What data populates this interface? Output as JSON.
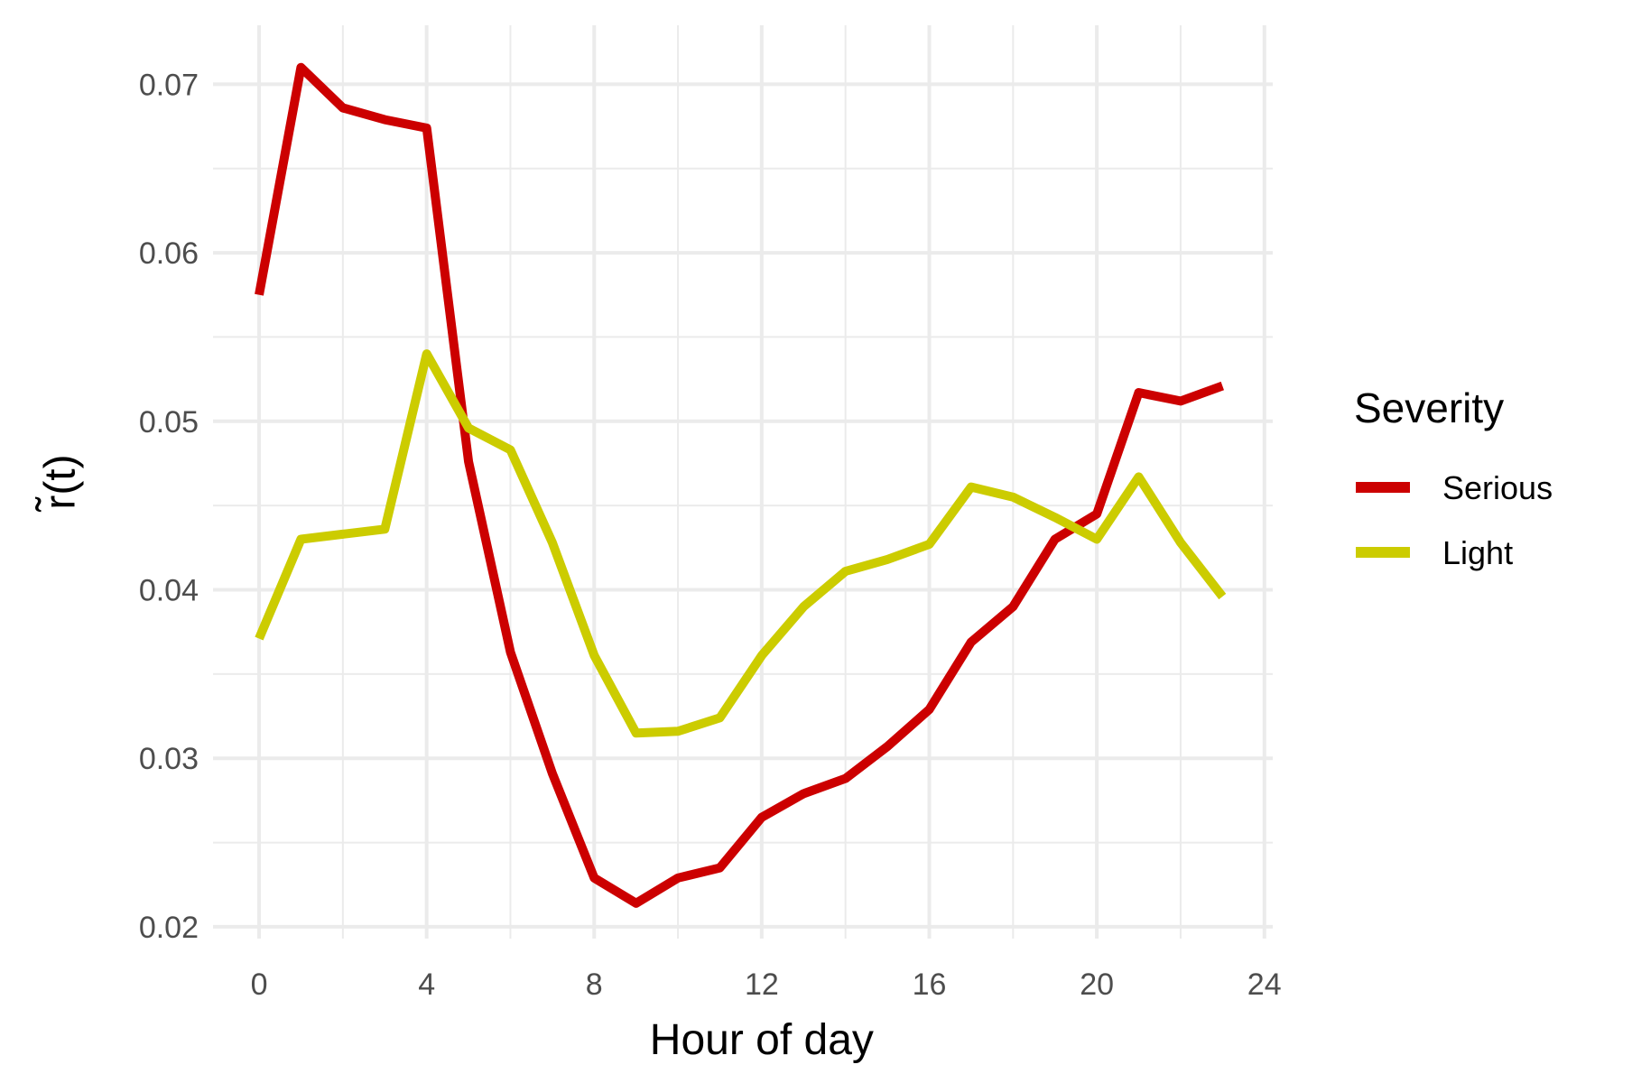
{
  "chart_data": {
    "type": "line",
    "xlabel": "Hour of day",
    "ylabel": "r̃(t)",
    "xlim": [
      -1.1,
      24.2
    ],
    "ylim": [
      0.0193,
      0.0735
    ],
    "x_ticks": [
      0,
      4,
      8,
      12,
      16,
      20,
      24
    ],
    "x_tick_labels": [
      "0",
      "4",
      "8",
      "12",
      "16",
      "20",
      "24"
    ],
    "y_ticks": [
      0.02,
      0.03,
      0.04,
      0.05,
      0.06,
      0.07
    ],
    "y_tick_labels": [
      "0.02",
      "0.03",
      "0.04",
      "0.05",
      "0.06",
      "0.07"
    ],
    "x_minor_ticks": [
      2,
      6,
      10,
      14,
      18,
      22
    ],
    "y_minor_ticks": [
      0.025,
      0.035,
      0.045,
      0.055,
      0.065
    ],
    "grid": true,
    "legend": {
      "title": "Severity",
      "position": "right"
    },
    "x": [
      0,
      1,
      2,
      3,
      4,
      5,
      6,
      7,
      8,
      9,
      10,
      11,
      12,
      13,
      14,
      15,
      16,
      17,
      18,
      19,
      20,
      21,
      22,
      23
    ],
    "series": [
      {
        "name": "Serious",
        "color": "#cc0000",
        "values": [
          0.0575,
          0.071,
          0.0686,
          0.0679,
          0.0674,
          0.0476,
          0.0363,
          0.0291,
          0.0229,
          0.0214,
          0.0229,
          0.0235,
          0.0265,
          0.0279,
          0.0288,
          0.0307,
          0.0329,
          0.0369,
          0.039,
          0.043,
          0.0445,
          0.0517,
          0.0512,
          0.0521
        ]
      },
      {
        "name": "Light",
        "color": "#cccc00",
        "values": [
          0.0371,
          0.043,
          0.0433,
          0.0436,
          0.054,
          0.0496,
          0.0483,
          0.0428,
          0.0361,
          0.0315,
          0.0316,
          0.0324,
          0.0361,
          0.039,
          0.0411,
          0.0418,
          0.0427,
          0.0461,
          0.0455,
          0.0443,
          0.043,
          0.0467,
          0.0428,
          0.0396
        ]
      }
    ]
  }
}
